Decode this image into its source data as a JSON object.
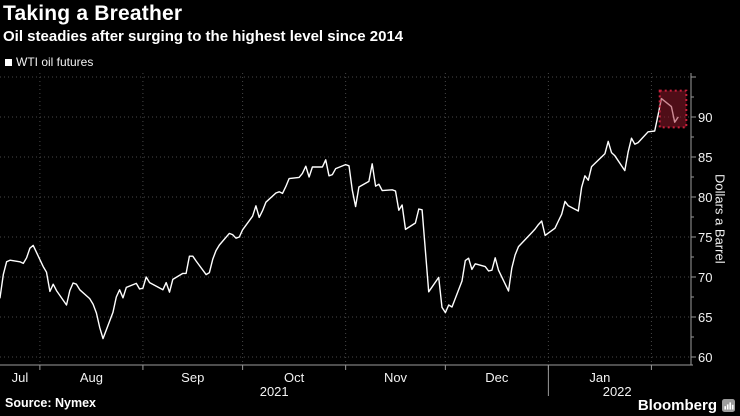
{
  "title": "Taking a Breather",
  "subtitle": "Oil steadies after surging to the highest level since 2014",
  "legend": {
    "label": "WTI oil futures",
    "swatch_color": "#ffffff"
  },
  "source": "Source: Nymex",
  "brand": {
    "name": "Bloomberg",
    "icon": "bar-chart-logo-icon"
  },
  "colors": {
    "background": "#000000",
    "line": "#ffffff",
    "grid": "#474747",
    "axis": "#9b9b9b",
    "text": "#f2f2f2",
    "highlight_fill": "rgba(158,26,46,0.5)",
    "highlight_border": "#c9203c"
  },
  "chart_data": {
    "type": "line",
    "series_name": "WTI oil futures",
    "unit": "Dollars a Barrel",
    "ylabel": "Dollars a Barrel",
    "title": "Taking a Breather",
    "subtitle": "Oil steadies after surging to the highest level since 2014",
    "legend_position": "top-left",
    "grid": "dotted",
    "x_domain": [
      "2021-07-20",
      "2022-02-09"
    ],
    "ylim": [
      58.5,
      95.5
    ],
    "y_gridlines": [
      60,
      65,
      70,
      75,
      80,
      85,
      90,
      95
    ],
    "y_tick_labels": [
      60,
      65,
      70,
      75,
      80,
      85,
      90
    ],
    "y_minor_tick_step": 2.5,
    "month_starts": [
      "2021-08-01",
      "2021-09-01",
      "2021-10-01",
      "2021-11-01",
      "2021-12-01",
      "2022-01-01",
      "2022-02-01"
    ],
    "month_labels": [
      "Jul",
      "Aug",
      "Sep",
      "Oct",
      "Nov",
      "Dec",
      "Jan"
    ],
    "year_tick": "2022-01-01",
    "years": [
      {
        "label": "2021",
        "from": "2021-07-20",
        "to": "2022-01-01"
      },
      {
        "label": "2022",
        "from": "2022-01-01",
        "to": "2022-02-12"
      }
    ],
    "highlight_box": {
      "x_range": [
        "2022-02-03T12:00:00",
        "2022-02-11T12:00:00"
      ],
      "y_range": [
        88.7,
        93.3
      ],
      "meaning": "last days where oil steadies after the surge"
    },
    "points": [
      [
        "2021-07-20",
        67.4
      ],
      [
        "2021-07-21",
        70.3
      ],
      [
        "2021-07-22",
        71.9
      ],
      [
        "2021-07-23",
        72.1
      ],
      [
        "2021-07-26",
        71.9
      ],
      [
        "2021-07-27",
        71.7
      ],
      [
        "2021-07-28",
        72.4
      ],
      [
        "2021-07-29",
        73.6
      ],
      [
        "2021-07-30",
        73.95
      ],
      [
        "2021-08-02",
        71.3
      ],
      [
        "2021-08-03",
        70.6
      ],
      [
        "2021-08-04",
        68.2
      ],
      [
        "2021-08-05",
        69.1
      ],
      [
        "2021-08-06",
        68.3
      ],
      [
        "2021-08-09",
        66.5
      ],
      [
        "2021-08-10",
        68.3
      ],
      [
        "2021-08-11",
        69.25
      ],
      [
        "2021-08-12",
        69.1
      ],
      [
        "2021-08-13",
        68.4
      ],
      [
        "2021-08-16",
        67.3
      ],
      [
        "2021-08-17",
        66.6
      ],
      [
        "2021-08-18",
        65.5
      ],
      [
        "2021-08-19",
        63.7
      ],
      [
        "2021-08-20",
        62.3
      ],
      [
        "2021-08-23",
        65.6
      ],
      [
        "2021-08-24",
        67.5
      ],
      [
        "2021-08-25",
        68.4
      ],
      [
        "2021-08-26",
        67.4
      ],
      [
        "2021-08-27",
        68.7
      ],
      [
        "2021-08-30",
        69.2
      ],
      [
        "2021-08-31",
        68.5
      ],
      [
        "2021-09-01",
        68.6
      ],
      [
        "2021-09-02",
        70.0
      ],
      [
        "2021-09-03",
        69.3
      ],
      [
        "2021-09-07",
        68.4
      ],
      [
        "2021-09-08",
        69.3
      ],
      [
        "2021-09-09",
        68.1
      ],
      [
        "2021-09-10",
        69.7
      ],
      [
        "2021-09-13",
        70.45
      ],
      [
        "2021-09-14",
        70.45
      ],
      [
        "2021-09-15",
        72.6
      ],
      [
        "2021-09-16",
        72.6
      ],
      [
        "2021-09-17",
        72.0
      ],
      [
        "2021-09-20",
        70.3
      ],
      [
        "2021-09-21",
        70.55
      ],
      [
        "2021-09-22",
        72.2
      ],
      [
        "2021-09-23",
        73.3
      ],
      [
        "2021-09-24",
        74.0
      ],
      [
        "2021-09-27",
        75.45
      ],
      [
        "2021-09-28",
        75.3
      ],
      [
        "2021-09-29",
        74.85
      ],
      [
        "2021-09-30",
        75.0
      ],
      [
        "2021-10-01",
        75.9
      ],
      [
        "2021-10-04",
        77.6
      ],
      [
        "2021-10-05",
        78.9
      ],
      [
        "2021-10-06",
        77.45
      ],
      [
        "2021-10-07",
        78.3
      ],
      [
        "2021-10-08",
        79.35
      ],
      [
        "2021-10-11",
        80.5
      ],
      [
        "2021-10-12",
        80.65
      ],
      [
        "2021-10-13",
        80.45
      ],
      [
        "2021-10-14",
        81.3
      ],
      [
        "2021-10-15",
        82.3
      ],
      [
        "2021-10-18",
        82.45
      ],
      [
        "2021-10-19",
        82.95
      ],
      [
        "2021-10-20",
        83.85
      ],
      [
        "2021-10-21",
        82.5
      ],
      [
        "2021-10-22",
        83.75
      ],
      [
        "2021-10-25",
        83.75
      ],
      [
        "2021-10-26",
        84.65
      ],
      [
        "2021-10-27",
        82.65
      ],
      [
        "2021-10-28",
        82.8
      ],
      [
        "2021-10-29",
        83.55
      ],
      [
        "2021-11-01",
        84.05
      ],
      [
        "2021-11-02",
        83.9
      ],
      [
        "2021-11-03",
        80.85
      ],
      [
        "2021-11-04",
        78.8
      ],
      [
        "2021-11-05",
        81.25
      ],
      [
        "2021-11-08",
        81.95
      ],
      [
        "2021-11-09",
        84.15
      ],
      [
        "2021-11-10",
        81.35
      ],
      [
        "2021-11-11",
        81.6
      ],
      [
        "2021-11-12",
        80.8
      ],
      [
        "2021-11-15",
        80.9
      ],
      [
        "2021-11-16",
        80.75
      ],
      [
        "2021-11-17",
        78.35
      ],
      [
        "2021-11-18",
        79.0
      ],
      [
        "2021-11-19",
        75.95
      ],
      [
        "2021-11-22",
        76.75
      ],
      [
        "2021-11-23",
        78.5
      ],
      [
        "2021-11-24",
        78.4
      ],
      [
        "2021-11-26",
        68.15
      ],
      [
        "2021-11-29",
        69.95
      ],
      [
        "2021-11-30",
        66.2
      ],
      [
        "2021-12-01",
        65.55
      ],
      [
        "2021-12-02",
        66.5
      ],
      [
        "2021-12-03",
        66.25
      ],
      [
        "2021-12-06",
        69.5
      ],
      [
        "2021-12-07",
        72.05
      ],
      [
        "2021-12-08",
        72.35
      ],
      [
        "2021-12-09",
        70.95
      ],
      [
        "2021-12-10",
        71.65
      ],
      [
        "2021-12-13",
        71.3
      ],
      [
        "2021-12-14",
        70.75
      ],
      [
        "2021-12-15",
        70.85
      ],
      [
        "2021-12-16",
        72.4
      ],
      [
        "2021-12-17",
        70.85
      ],
      [
        "2021-12-20",
        68.25
      ],
      [
        "2021-12-21",
        71.1
      ],
      [
        "2021-12-22",
        72.75
      ],
      [
        "2021-12-23",
        73.8
      ],
      [
        "2021-12-27",
        75.55
      ],
      [
        "2021-12-28",
        76.0
      ],
      [
        "2021-12-29",
        76.55
      ],
      [
        "2021-12-30",
        77.0
      ],
      [
        "2021-12-31",
        75.2
      ],
      [
        "2022-01-03",
        76.1
      ],
      [
        "2022-01-04",
        77.0
      ],
      [
        "2022-01-05",
        77.85
      ],
      [
        "2022-01-06",
        79.45
      ],
      [
        "2022-01-07",
        78.9
      ],
      [
        "2022-01-10",
        78.25
      ],
      [
        "2022-01-11",
        81.2
      ],
      [
        "2022-01-12",
        82.65
      ],
      [
        "2022-01-13",
        82.1
      ],
      [
        "2022-01-14",
        83.8
      ],
      [
        "2022-01-18",
        85.4
      ],
      [
        "2022-01-19",
        86.95
      ],
      [
        "2022-01-20",
        85.55
      ],
      [
        "2022-01-21",
        85.15
      ],
      [
        "2022-01-24",
        83.3
      ],
      [
        "2022-01-25",
        85.6
      ],
      [
        "2022-01-26",
        87.35
      ],
      [
        "2022-01-27",
        86.6
      ],
      [
        "2022-01-28",
        86.8
      ],
      [
        "2022-01-31",
        88.15
      ],
      [
        "2022-02-01",
        88.2
      ],
      [
        "2022-02-02",
        88.25
      ],
      [
        "2022-02-03",
        90.25
      ],
      [
        "2022-02-04",
        92.3
      ],
      [
        "2022-02-07",
        91.3
      ],
      [
        "2022-02-08",
        89.35
      ],
      [
        "2022-02-09",
        89.95
      ]
    ]
  }
}
